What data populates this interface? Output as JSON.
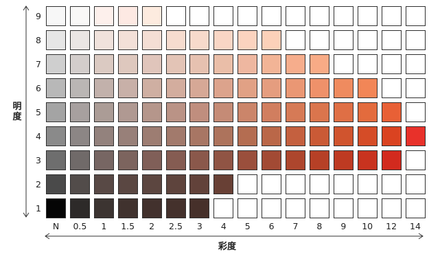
{
  "axes": {
    "y_title": "明度",
    "x_title": "彩度"
  },
  "rows": [
    "9",
    "8",
    "7",
    "6",
    "5",
    "4",
    "3",
    "2",
    "1"
  ],
  "columns": [
    "N",
    "0.5",
    "1",
    "1.5",
    "2",
    "2.5",
    "3",
    "4",
    "5",
    "6",
    "7",
    "8",
    "9",
    "10",
    "12",
    "14"
  ],
  "grid_colors": [
    [
      "#f7f7f7",
      "#f9f8f7",
      "#fdf0ec",
      "#fde9e3",
      "#fdebdf",
      "#ffffff",
      "#ffffff",
      "#ffffff",
      "#ffffff",
      "#ffffff",
      "#ffffff",
      "#ffffff",
      "#ffffff",
      "#ffffff",
      "#ffffff",
      "#ffffff"
    ],
    [
      "#e6e6e6",
      "#ebe6e4",
      "#f0e2dc",
      "#f3e0d8",
      "#f4ded4",
      "#f6dccf",
      "#f7dacb",
      "#f9d6c5",
      "#fbd3bf",
      "#fcd1b9",
      "#ffffff",
      "#ffffff",
      "#ffffff",
      "#ffffff",
      "#ffffff",
      "#ffffff"
    ],
    [
      "#cfcfcf",
      "#d3cdcb",
      "#dbcac2",
      "#dec8be",
      "#e0c5bb",
      "#e3c4b6",
      "#e6c1b0",
      "#eabea8",
      "#eeb7a0",
      "#f2b496",
      "#f6ad8c",
      "#f8ab86",
      "#ffffff",
      "#ffffff",
      "#ffffff",
      "#ffffff"
    ],
    [
      "#b8b8b8",
      "#bab6b4",
      "#c2b1ab",
      "#c8b0a8",
      "#cfafa2",
      "#d3ad9e",
      "#d6a896",
      "#dca38c",
      "#e1a185",
      "#e59d7f",
      "#ea9774",
      "#ef916a",
      "#ef8b5f",
      "#f28657",
      "#ffffff",
      "#ffffff"
    ],
    [
      "#a4a4a4",
      "#a7a09f",
      "#ab9c96",
      "#b09992",
      "#b5968b",
      "#ba9386",
      "#c08e7e",
      "#c58b76",
      "#cb856a",
      "#d17e5f",
      "#d67a56",
      "#da754d",
      "#df6f45",
      "#e36b3d",
      "#e86036",
      "#ffffff"
    ],
    [
      "#8a8a8a",
      "#8c8685",
      "#93827d",
      "#988079",
      "#9d7d72",
      "#a27a6c",
      "#a87664",
      "#ad735c",
      "#b46d51",
      "#ba6748",
      "#c4603f",
      "#ca5a36",
      "#d0542e",
      "#d54c27",
      "#da4321",
      "#e8312a"
    ],
    [
      "#6e6e6e",
      "#706a69",
      "#776663",
      "#7c645e",
      "#805f58",
      "#855c52",
      "#8a584b",
      "#905444",
      "#9a4f3c",
      "#a24a34",
      "#ad462d",
      "#b64026",
      "#be3a22",
      "#c8331f",
      "#d22a1e",
      "#ffffff"
    ],
    [
      "#4a4a4a",
      "#524c4a",
      "#584945",
      "#5a4742",
      "#5c4640",
      "#5e443d",
      "#62423a",
      "#684035",
      "#ffffff",
      "#ffffff",
      "#ffffff",
      "#ffffff",
      "#ffffff",
      "#ffffff",
      "#ffffff",
      "#ffffff"
    ],
    [
      "#050505",
      "#2d2a29",
      "#3c3431",
      "#40322e",
      "#42312d",
      "#44312c",
      "#46302a",
      "#ffffff",
      "#ffffff",
      "#ffffff",
      "#ffffff",
      "#ffffff",
      "#ffffff",
      "#ffffff",
      "#ffffff",
      "#ffffff"
    ]
  ]
}
